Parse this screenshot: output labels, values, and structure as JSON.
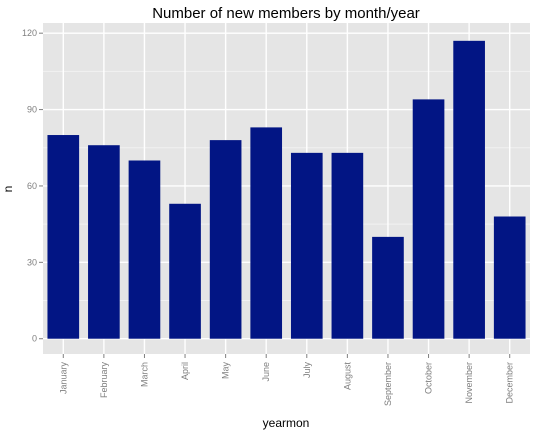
{
  "chart_data": {
    "type": "bar",
    "title": "Number of new members by month/year",
    "xlabel": "yearmon",
    "ylabel": "n",
    "categories": [
      "January",
      "February",
      "March",
      "April",
      "May",
      "June",
      "July",
      "August",
      "September",
      "October",
      "November",
      "December"
    ],
    "values": [
      80,
      76,
      70,
      53,
      78,
      83,
      73,
      73,
      40,
      94,
      117,
      48
    ],
    "ylim": [
      -6,
      124
    ],
    "yticks": [
      0,
      30,
      60,
      90,
      120
    ],
    "grid": true,
    "legend": "none"
  },
  "colors": {
    "bar": "#021584",
    "panel": "#e5e5e5",
    "grid_major": "#ffffff",
    "grid_minor": "#f2f2f2"
  }
}
